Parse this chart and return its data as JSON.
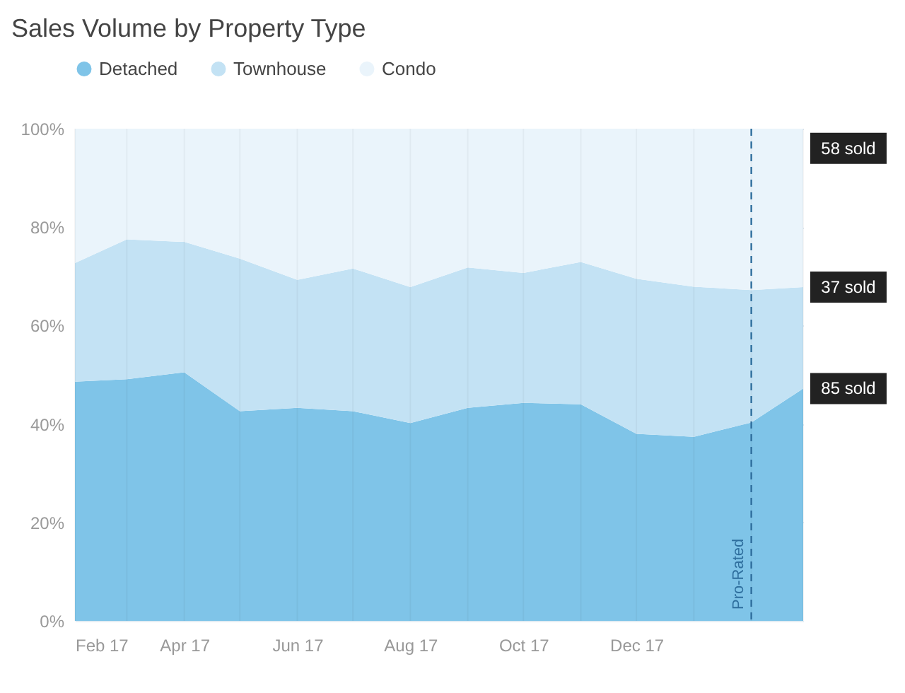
{
  "chart_data": {
    "type": "area",
    "title": "Sales Volume by Property Type",
    "stacked": true,
    "x": [
      "2017-02",
      "2017-03",
      "2017-04",
      "2017-05",
      "2017-06",
      "2017-07",
      "2017-08",
      "2017-09",
      "2017-10",
      "2017-11",
      "2017-12",
      "2018-01",
      "2018-02",
      "2018-03"
    ],
    "series": [
      {
        "name": "Detached",
        "color": "#7fc4e8",
        "values": [
          48.6,
          49.1,
          50.5,
          42.6,
          43.3,
          42.6,
          40.2,
          43.3,
          44.3,
          44,
          38,
          37.4,
          40.3,
          47.2
        ]
      },
      {
        "name": "Townhouse",
        "color": "#c3e2f4",
        "values": [
          24.1,
          28.4,
          26.5,
          31,
          26,
          29,
          27.6,
          28.5,
          26.4,
          28.9,
          31.5,
          30.5,
          26.9,
          20.6
        ]
      },
      {
        "name": "Condo",
        "color": "#eaf4fb",
        "values": [
          27.3,
          22.5,
          23,
          26.4,
          30.7,
          28.4,
          32.2,
          28.2,
          29.3,
          27.1,
          30.5,
          32.1,
          32.8,
          32.2
        ]
      }
    ],
    "xlim": [
      "2017-02",
      "2018-03"
    ],
    "xticks": [
      {
        "value": "2017-02",
        "label": "Feb 17"
      },
      {
        "value": "2017-04",
        "label": "Apr 17"
      },
      {
        "value": "2017-06",
        "label": "Jun 17"
      },
      {
        "value": "2017-08",
        "label": "Aug 17"
      },
      {
        "value": "2017-10",
        "label": "Oct 17"
      },
      {
        "value": "2017-12",
        "label": "Dec 17"
      }
    ],
    "ylim": [
      0,
      100
    ],
    "yticks": [
      {
        "value": 0,
        "label": "0%"
      },
      {
        "value": 20,
        "label": "20%"
      },
      {
        "value": 40,
        "label": "40%"
      },
      {
        "value": 60,
        "label": "60%"
      },
      {
        "value": 80,
        "label": "80%"
      },
      {
        "value": 100,
        "label": "100%"
      }
    ],
    "grid": true,
    "legend": "top left",
    "ref_lines": [
      {
        "axis": "x",
        "value": "2018-02",
        "label": "Pro-Rated",
        "line_style": "dashed",
        "color": "#2f6f9e"
      }
    ],
    "annotations": [
      {
        "text": "58 sold",
        "x": "2018-03",
        "y": 96
      },
      {
        "text": "37 sold",
        "x": "2018-03",
        "y": 67.8
      },
      {
        "text": "85 sold",
        "x": "2018-03",
        "y": 47.2
      }
    ]
  }
}
